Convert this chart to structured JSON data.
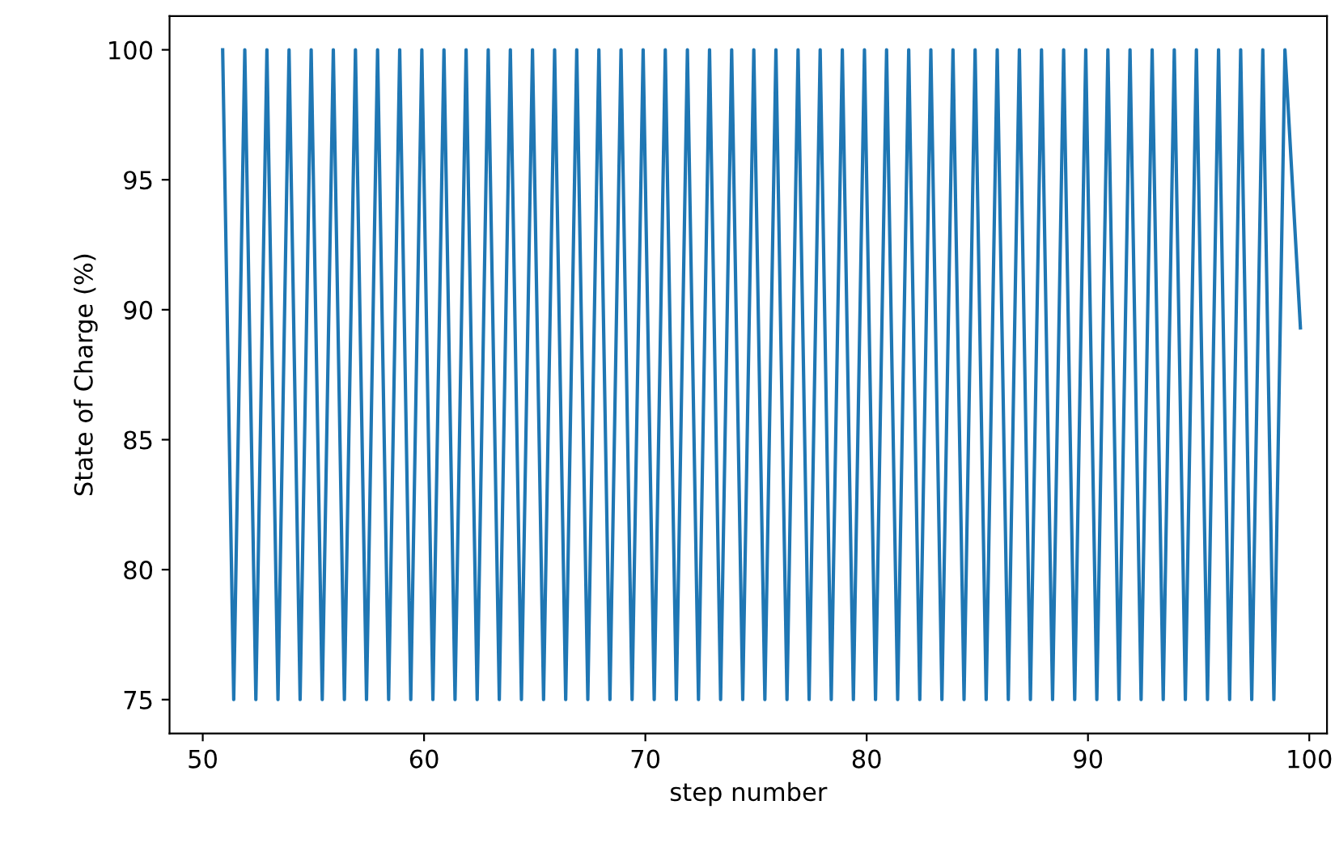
{
  "chart_data": {
    "type": "line",
    "xlabel": "step number",
    "ylabel": "State of Charge (%)",
    "x": [
      50.9,
      51.4,
      51.9,
      52.4,
      52.9,
      53.4,
      53.9,
      54.4,
      54.9,
      55.4,
      55.9,
      56.4,
      56.9,
      57.4,
      57.9,
      58.4,
      58.9,
      59.4,
      59.9,
      60.4,
      60.9,
      61.4,
      61.9,
      62.4,
      62.9,
      63.4,
      63.9,
      64.4,
      64.9,
      65.4,
      65.9,
      66.4,
      66.9,
      67.4,
      67.9,
      68.4,
      68.9,
      69.4,
      69.9,
      70.4,
      70.9,
      71.4,
      71.9,
      72.4,
      72.9,
      73.4,
      73.9,
      74.4,
      74.9,
      75.4,
      75.9,
      76.4,
      76.9,
      77.4,
      77.9,
      78.4,
      78.9,
      79.4,
      79.9,
      80.4,
      80.9,
      81.4,
      81.9,
      82.4,
      82.9,
      83.4,
      83.9,
      84.4,
      84.9,
      85.4,
      85.9,
      86.4,
      86.9,
      87.4,
      87.9,
      88.4,
      88.9,
      89.4,
      89.9,
      90.4,
      90.9,
      91.4,
      91.9,
      92.4,
      92.9,
      93.4,
      93.9,
      94.4,
      94.9,
      95.4,
      95.9,
      96.4,
      96.9,
      97.4,
      97.9,
      98.4,
      98.9,
      99.6
    ],
    "series": [
      {
        "color": "#1f77b4",
        "values": [
          100,
          75,
          100,
          75,
          100,
          75,
          100,
          75,
          100,
          75,
          100,
          75,
          100,
          75,
          100,
          75,
          100,
          75,
          100,
          75,
          100,
          75,
          100,
          75,
          100,
          75,
          100,
          75,
          100,
          75,
          100,
          75,
          100,
          75,
          100,
          75,
          100,
          75,
          100,
          75,
          100,
          75,
          100,
          75,
          100,
          75,
          100,
          75,
          100,
          75,
          100,
          75,
          100,
          75,
          100,
          75,
          100,
          75,
          100,
          75,
          100,
          75,
          100,
          75,
          100,
          75,
          100,
          75,
          100,
          75,
          100,
          75,
          100,
          75,
          100,
          75,
          100,
          75,
          100,
          75,
          100,
          75,
          100,
          75,
          100,
          75,
          100,
          75,
          100,
          75,
          100,
          75,
          100,
          75,
          100,
          75,
          100,
          89.3
        ]
      }
    ],
    "xlim": [
      48.5,
      100.8
    ],
    "ylim": [
      73.7,
      101.3
    ],
    "xticks": [
      50,
      60,
      70,
      80,
      90,
      100
    ],
    "yticks": [
      75,
      80,
      85,
      90,
      95,
      100
    ],
    "grid": false,
    "legend": false
  }
}
